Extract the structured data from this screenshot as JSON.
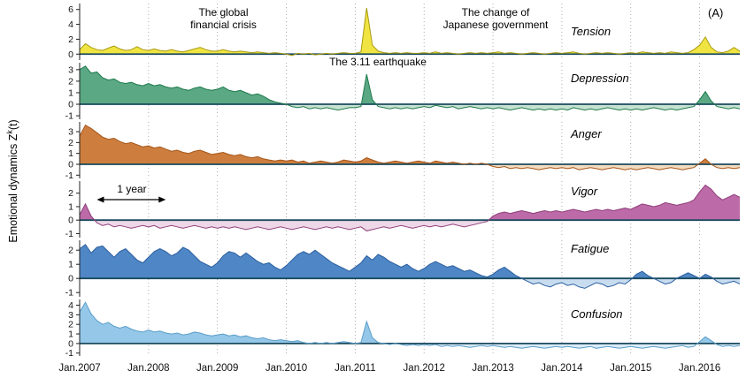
{
  "figure": {
    "ylabel_prefix": "Emotional dynamics Z",
    "ylabel_sup": "k",
    "ylabel_suffix": "(t)",
    "panel_tag": "(A)",
    "annotations": {
      "financial_crisis": "The global\nfinancial crisis",
      "gov_change": "The change of\nJapanese government",
      "earthquake": "The 3.11 earthquake",
      "one_year": "1 year"
    }
  },
  "chart_data": {
    "type": "area",
    "title": "Emotional dynamics of six POMS mood states, monthly, Jan 2007 - Aug 2016",
    "x_tick_labels": [
      "Jan.2007",
      "Jan.2008",
      "Jan.2009",
      "Jan.2010",
      "Jan.2011",
      "Jan.2012",
      "Jan.2013",
      "Jan.2014",
      "Jan.2015",
      "Jan.2016"
    ],
    "x_gridline_months": [
      0,
      12,
      24,
      36,
      48,
      60,
      72,
      84,
      96,
      108
    ],
    "months_total": 116,
    "grid": "dotted-vertical",
    "zero_line_color": "#1a4a5e",
    "gridline_color": "#9a9a9a",
    "axis_color": "#222222",
    "panels": [
      {
        "name": "Tension",
        "ticks": [
          0,
          2,
          4,
          6
        ],
        "ylim": [
          -0.8,
          6.8
        ],
        "fill_pos": "#f0e442",
        "fill_neg": "#f9f3b0",
        "stroke": "#a89a10",
        "values": [
          0.6,
          1.4,
          0.9,
          0.6,
          0.5,
          0.8,
          1.1,
          0.7,
          0.5,
          0.6,
          1.0,
          0.6,
          0.5,
          0.7,
          0.5,
          0.4,
          0.6,
          0.4,
          0.3,
          0.5,
          0.7,
          0.9,
          0.6,
          0.4,
          0.4,
          0.6,
          0.4,
          0.3,
          0.4,
          0.3,
          0.2,
          0.3,
          0.2,
          0.1,
          0.2,
          0.1,
          0.0,
          -0.2,
          0.1,
          0.0,
          0.1,
          -0.1,
          0.0,
          0.1,
          0.0,
          0.1,
          0.2,
          0.1,
          0.1,
          0.3,
          6.2,
          1.2,
          0.4,
          0.2,
          0.1,
          0.2,
          0.1,
          0.2,
          0.1,
          0.1,
          0.2,
          0.1,
          0.3,
          0.1,
          0.2,
          0.1,
          0.0,
          0.1,
          0.2,
          0.1,
          0.2,
          0.1,
          0.2,
          0.3,
          0.1,
          0.2,
          0.1,
          0.0,
          0.1,
          0.2,
          0.1,
          0.0,
          0.1,
          0.2,
          0.1,
          0.2,
          0.3,
          0.1,
          0.0,
          0.1,
          0.2,
          0.1,
          0.2,
          0.1,
          0.0,
          0.1,
          0.2,
          0.1,
          0.3,
          0.2,
          0.1,
          0.2,
          0.1,
          0.3,
          0.2,
          0.1,
          0.2,
          0.6,
          1.2,
          2.3,
          0.9,
          0.3,
          0.2,
          0.4,
          0.9,
          0.4
        ]
      },
      {
        "name": "Depression",
        "ticks": [
          -1,
          0,
          1,
          2,
          3
        ],
        "ylim": [
          -1.3,
          3.6
        ],
        "fill_pos": "#5aa884",
        "fill_neg": "#c6e2d1",
        "stroke": "#1f7a4d",
        "values": [
          3.0,
          3.3,
          2.7,
          2.8,
          2.3,
          2.1,
          2.2,
          1.9,
          1.8,
          1.9,
          1.7,
          1.6,
          1.8,
          1.6,
          1.7,
          1.5,
          1.4,
          1.5,
          1.3,
          1.2,
          1.4,
          1.5,
          1.3,
          1.2,
          1.3,
          1.5,
          1.2,
          1.1,
          1.2,
          1.0,
          0.8,
          0.9,
          0.7,
          0.4,
          0.2,
          0.1,
          0.0,
          -0.2,
          -0.3,
          -0.2,
          -0.4,
          -0.3,
          -0.4,
          -0.3,
          -0.4,
          -0.5,
          -0.4,
          -0.3,
          -0.3,
          -0.2,
          2.6,
          0.4,
          -0.2,
          -0.3,
          -0.4,
          -0.3,
          -0.4,
          -0.3,
          -0.4,
          -0.3,
          -0.2,
          -0.3,
          -0.1,
          -0.2,
          -0.3,
          -0.2,
          -0.4,
          -0.3,
          -0.2,
          -0.3,
          -0.4,
          -0.3,
          -0.4,
          -0.3,
          -0.4,
          -0.5,
          -0.4,
          -0.3,
          -0.4,
          -0.5,
          -0.4,
          -0.5,
          -0.4,
          -0.5,
          -0.4,
          -0.5,
          -0.3,
          -0.4,
          -0.5,
          -0.4,
          -0.5,
          -0.4,
          -0.3,
          -0.4,
          -0.5,
          -0.4,
          -0.5,
          -0.4,
          -0.5,
          -0.4,
          -0.3,
          -0.4,
          -0.5,
          -0.4,
          -0.5,
          -0.4,
          -0.3,
          -0.2,
          0.4,
          1.1,
          0.3,
          -0.2,
          -0.3,
          -0.4,
          -0.3,
          -0.4
        ]
      },
      {
        "name": "Anger",
        "ticks": [
          -1,
          0,
          1,
          2,
          3
        ],
        "ylim": [
          -1.3,
          3.9
        ],
        "fill_pos": "#cd7e3e",
        "fill_neg": "#f3dcc0",
        "stroke": "#a65519",
        "values": [
          2.6,
          3.6,
          3.3,
          2.9,
          2.5,
          2.3,
          2.4,
          2.1,
          1.9,
          2.0,
          1.8,
          1.6,
          1.7,
          1.5,
          1.6,
          1.4,
          1.2,
          1.3,
          1.1,
          1.0,
          1.2,
          1.3,
          1.1,
          0.9,
          1.0,
          1.1,
          0.9,
          0.8,
          0.9,
          0.7,
          0.6,
          0.7,
          0.5,
          0.4,
          0.3,
          0.4,
          0.3,
          0.4,
          0.2,
          0.3,
          0.1,
          0.2,
          0.3,
          0.2,
          0.1,
          0.2,
          0.4,
          0.3,
          0.2,
          0.3,
          0.6,
          0.4,
          0.2,
          0.1,
          0.2,
          0.3,
          0.2,
          0.1,
          0.2,
          0.3,
          0.2,
          0.1,
          0.3,
          0.2,
          0.1,
          0.2,
          0.1,
          0.0,
          0.1,
          0.0,
          0.1,
          0.0,
          -0.2,
          -0.3,
          -0.2,
          -0.4,
          -0.3,
          -0.4,
          -0.3,
          -0.4,
          -0.5,
          -0.4,
          -0.3,
          -0.4,
          -0.3,
          -0.4,
          -0.3,
          -0.5,
          -0.4,
          -0.3,
          -0.4,
          -0.5,
          -0.4,
          -0.3,
          -0.4,
          -0.5,
          -0.4,
          -0.5,
          -0.4,
          -0.3,
          -0.4,
          -0.5,
          -0.4,
          -0.3,
          -0.4,
          -0.5,
          -0.4,
          -0.3,
          0.1,
          0.5,
          0.0,
          -0.3,
          -0.4,
          -0.3,
          -0.4,
          -0.3
        ]
      },
      {
        "name": "Vigor",
        "ticks": [
          -1,
          0,
          1,
          2
        ],
        "ylim": [
          -1.3,
          2.9
        ],
        "fill_pos": "#bd6aa8",
        "fill_neg": "#eed7e7",
        "stroke": "#8f3f7a",
        "values": [
          0.4,
          1.2,
          0.3,
          -0.2,
          -0.4,
          -0.3,
          -0.5,
          -0.4,
          -0.5,
          -0.6,
          -0.5,
          -0.4,
          -0.5,
          -0.4,
          -0.6,
          -0.5,
          -0.4,
          -0.5,
          -0.6,
          -0.5,
          -0.4,
          -0.5,
          -0.6,
          -0.5,
          -0.6,
          -0.5,
          -0.6,
          -0.5,
          -0.6,
          -0.7,
          -0.6,
          -0.5,
          -0.6,
          -0.7,
          -0.6,
          -0.5,
          -0.6,
          -0.7,
          -0.6,
          -0.5,
          -0.6,
          -0.7,
          -0.6,
          -0.5,
          -0.6,
          -0.5,
          -0.6,
          -0.7,
          -0.6,
          -0.5,
          -0.8,
          -0.7,
          -0.6,
          -0.5,
          -0.6,
          -0.5,
          -0.4,
          -0.5,
          -0.6,
          -0.5,
          -0.4,
          -0.5,
          -0.4,
          -0.5,
          -0.4,
          -0.3,
          -0.4,
          -0.5,
          -0.4,
          -0.3,
          -0.2,
          -0.1,
          0.3,
          0.5,
          0.6,
          0.5,
          0.6,
          0.7,
          0.6,
          0.5,
          0.6,
          0.7,
          0.6,
          0.7,
          0.6,
          0.7,
          0.8,
          0.7,
          0.6,
          0.7,
          0.8,
          0.7,
          0.8,
          0.7,
          0.8,
          0.9,
          0.8,
          1.0,
          1.2,
          1.1,
          1.0,
          1.1,
          1.3,
          1.2,
          1.1,
          1.2,
          1.3,
          1.5,
          2.1,
          2.6,
          2.3,
          1.8,
          1.5,
          1.7,
          1.9,
          1.7
        ]
      },
      {
        "name": "Fatigue",
        "ticks": [
          -1,
          0,
          1,
          2
        ],
        "ylim": [
          -1.3,
          2.7
        ],
        "fill_pos": "#4f86c6",
        "fill_neg": "#c8dcf0",
        "stroke": "#2b5f9e",
        "values": [
          2.1,
          2.4,
          1.8,
          2.2,
          2.3,
          1.9,
          1.5,
          1.9,
          2.1,
          1.7,
          1.3,
          1.1,
          1.5,
          1.9,
          2.1,
          1.9,
          1.6,
          1.8,
          2.2,
          2.0,
          1.6,
          1.2,
          1.0,
          0.8,
          1.1,
          1.6,
          1.9,
          1.8,
          1.5,
          1.8,
          1.5,
          1.2,
          1.0,
          1.1,
          0.8,
          0.6,
          0.9,
          1.3,
          1.7,
          1.9,
          1.7,
          2.0,
          1.7,
          1.4,
          1.1,
          0.9,
          0.7,
          0.5,
          0.8,
          1.1,
          1.6,
          1.3,
          1.7,
          1.5,
          1.2,
          1.0,
          0.8,
          1.0,
          0.7,
          0.5,
          0.7,
          1.0,
          1.2,
          1.0,
          0.8,
          0.9,
          0.7,
          0.5,
          0.6,
          0.4,
          0.2,
          0.1,
          0.3,
          0.6,
          0.8,
          0.5,
          0.2,
          0.0,
          -0.2,
          -0.4,
          -0.3,
          -0.5,
          -0.6,
          -0.4,
          -0.3,
          -0.5,
          -0.4,
          -0.6,
          -0.7,
          -0.5,
          -0.3,
          -0.4,
          -0.6,
          -0.5,
          -0.3,
          -0.4,
          -0.1,
          0.3,
          0.5,
          0.2,
          0.0,
          -0.2,
          -0.4,
          -0.3,
          0.0,
          0.2,
          0.4,
          0.2,
          0.0,
          0.3,
          0.1,
          -0.2,
          -0.4,
          -0.3,
          -0.2,
          -0.4
        ]
      },
      {
        "name": "Confusion",
        "ticks": [
          -1,
          0,
          1,
          2,
          3,
          4
        ],
        "ylim": [
          -1.3,
          4.6
        ],
        "fill_pos": "#94c7e8",
        "fill_neg": "#d9ebf7",
        "stroke": "#5b9ec9",
        "values": [
          3.3,
          4.3,
          3.1,
          2.4,
          2.0,
          2.2,
          1.8,
          1.6,
          1.8,
          1.5,
          1.3,
          1.2,
          1.4,
          1.2,
          1.3,
          1.1,
          1.0,
          1.1,
          0.9,
          1.0,
          1.2,
          1.1,
          0.9,
          0.8,
          0.9,
          1.0,
          0.8,
          0.9,
          0.7,
          0.8,
          0.6,
          0.5,
          0.6,
          0.4,
          0.3,
          0.4,
          0.3,
          0.2,
          0.3,
          0.1,
          0.0,
          0.1,
          0.0,
          0.1,
          0.0,
          0.1,
          0.2,
          0.1,
          0.0,
          0.1,
          2.3,
          0.6,
          0.1,
          0.0,
          -0.1,
          0.0,
          -0.1,
          -0.2,
          -0.1,
          -0.2,
          -0.1,
          -0.2,
          -0.1,
          -0.3,
          -0.2,
          -0.3,
          -0.2,
          -0.3,
          -0.4,
          -0.3,
          -0.2,
          -0.3,
          -0.2,
          -0.3,
          -0.4,
          -0.3,
          -0.4,
          -0.5,
          -0.4,
          -0.3,
          -0.4,
          -0.5,
          -0.4,
          -0.3,
          -0.4,
          -0.3,
          -0.4,
          -0.5,
          -0.4,
          -0.3,
          -0.5,
          -0.4,
          -0.3,
          -0.4,
          -0.5,
          -0.4,
          -0.3,
          -0.4,
          -0.5,
          -0.4,
          -0.3,
          -0.4,
          -0.5,
          -0.4,
          -0.3,
          -0.2,
          -0.4,
          -0.3,
          0.2,
          0.7,
          0.3,
          -0.1,
          -0.3,
          -0.2,
          -0.3,
          -0.2
        ]
      }
    ]
  }
}
